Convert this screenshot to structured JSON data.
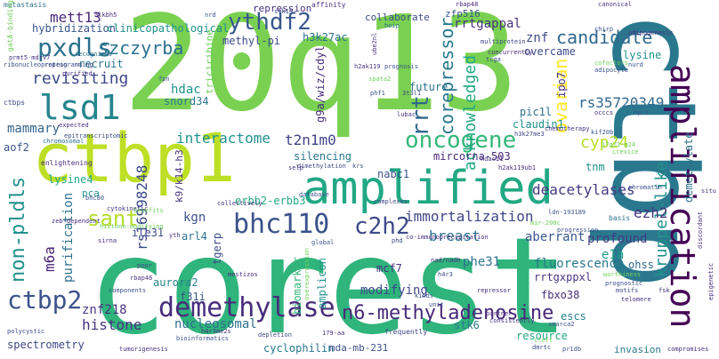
{
  "words": [
    {
      "text": "20q13",
      "color": "#7ad151"
    },
    {
      "text": "corest",
      "color": "#2fb47c"
    },
    {
      "text": "ctbp",
      "color": "#2a788e"
    },
    {
      "text": "ctbp1",
      "color": "#bddf26"
    },
    {
      "text": "amplified",
      "color": "#22a884"
    },
    {
      "text": "amplification",
      "color": "#440154"
    },
    {
      "text": "demethylase",
      "color": "#472d7b"
    },
    {
      "text": "bhc110",
      "color": "#3b528b"
    },
    {
      "text": "c2h2",
      "color": "#3e4a89"
    },
    {
      "text": "n6-methyladenosine",
      "color": "#482878"
    },
    {
      "text": "lsd1",
      "color": "#25858e"
    },
    {
      "text": "pxdls",
      "color": "#2c728e"
    },
    {
      "text": "oncogene",
      "color": "#35b779"
    },
    {
      "text": "ythdf2",
      "color": "#38588c"
    },
    {
      "text": "rrt",
      "color": "#31688e"
    },
    {
      "text": "ctbp2",
      "color": "#3b528b"
    },
    {
      "text": "non-pldls",
      "color": "#21918c"
    },
    {
      "text": "candidate",
      "color": "#31688e"
    },
    {
      "text": "corepressor",
      "color": "#2a788e"
    },
    {
      "text": "ovarian",
      "color": "#fde725"
    },
    {
      "text": "mett13",
      "color": "#482878"
    },
    {
      "text": "szczyrba",
      "color": "#2c728e"
    },
    {
      "text": "revisiting",
      "color": "#3e4a89"
    },
    {
      "text": "sant",
      "color": "#b5de2b"
    },
    {
      "text": "rs16998248",
      "color": "#3e4a89"
    },
    {
      "text": "acknowledged",
      "color": "#22a884"
    },
    {
      "text": "immortalization",
      "color": "#404688"
    },
    {
      "text": "breast",
      "color": "#2c728e"
    },
    {
      "text": "kruppel-like",
      "color": "#21918c"
    },
    {
      "text": "histone",
      "color": "#46337e"
    },
    {
      "text": "nucleosomal",
      "color": "#2e6f8e"
    },
    {
      "text": "znf218",
      "color": "#463480"
    },
    {
      "text": "deacetylases",
      "color": "#443983"
    },
    {
      "text": "fluorescence",
      "color": "#2a788e"
    },
    {
      "text": "rs35720349",
      "color": "#31688e"
    },
    {
      "text": "demethylate",
      "color": "#2c728e"
    },
    {
      "text": "ezh2",
      "color": "#46327e"
    },
    {
      "text": "cyp24",
      "color": "#b5de2b"
    },
    {
      "text": "interactome",
      "color": "#21918c"
    },
    {
      "text": "t2n1m0",
      "color": "#414487"
    },
    {
      "text": "spectrometry",
      "color": "#404688"
    },
    {
      "text": "stk6",
      "color": "#2a788e"
    },
    {
      "text": "modifying",
      "color": "#3e4a89"
    },
    {
      "text": "mammary",
      "color": "#33638d"
    },
    {
      "text": "hdac",
      "color": "#21918c"
    },
    {
      "text": "purification",
      "color": "#2c728e"
    },
    {
      "text": "m6a",
      "color": "#482677"
    },
    {
      "text": "cyclophilin",
      "color": "#2a788e"
    },
    {
      "text": "mda-mb-231",
      "color": "#3b528b"
    },
    {
      "text": "invasion",
      "color": "#2a788e"
    },
    {
      "text": "resource",
      "color": "#22a884"
    },
    {
      "text": "escs",
      "color": "#25848e"
    },
    {
      "text": "aberrant",
      "color": "#39568c"
    },
    {
      "text": "profound",
      "color": "#443a83"
    },
    {
      "text": "e1a",
      "color": "#1f9e89"
    },
    {
      "text": "ohss",
      "color": "#31688e"
    },
    {
      "text": "rrtgxppxl",
      "color": "#46327e"
    },
    {
      "text": "fbxo38",
      "color": "#472d7b"
    },
    {
      "text": "phe31",
      "color": "#2c728e"
    },
    {
      "text": "mircorna-503",
      "color": "#482878"
    },
    {
      "text": "nabc1",
      "color": "#3b528b"
    },
    {
      "text": "silencing",
      "color": "#2a788e"
    },
    {
      "text": "mcf7",
      "color": "#46327e"
    },
    {
      "text": "erbb2-erbb3",
      "color": "#22a884"
    },
    {
      "text": "amplicon",
      "color": "#21918c"
    },
    {
      "text": "biomarker",
      "color": "#35b779"
    },
    {
      "text": "tgerp",
      "color": "#3e4a89"
    },
    {
      "text": "aurora2",
      "color": "#26828e"
    },
    {
      "text": "f31i",
      "color": "#39568c"
    },
    {
      "text": "kgn",
      "color": "#3b528b"
    },
    {
      "text": "arl4",
      "color": "#2c728e"
    },
    {
      "text": "ile31",
      "color": "#3e4a89"
    },
    {
      "text": "k9/k14-h3",
      "color": "#46327e"
    },
    {
      "text": "lysine4",
      "color": "#22a884"
    },
    {
      "text": "pca",
      "color": "#21918c"
    },
    {
      "text": "aof2",
      "color": "#3b528b"
    },
    {
      "text": "recruit",
      "color": "#2a788e"
    },
    {
      "text": "hybridization",
      "color": "#39568c"
    },
    {
      "text": "clinicopathological",
      "color": "#21918c"
    },
    {
      "text": "methyl-pi",
      "color": "#3e4a89"
    },
    {
      "text": "h3k27ac",
      "color": "#2c728e"
    },
    {
      "text": "g9a/wiz/cdyl",
      "color": "#472d7b"
    },
    {
      "text": "future",
      "color": "#2c728e"
    },
    {
      "text": "snord34",
      "color": "#2a788e"
    },
    {
      "text": "triciribine",
      "color": "#6ece58"
    },
    {
      "text": "rrtgappal",
      "color": "#46327e"
    },
    {
      "text": "znf",
      "color": "#3e4a89"
    },
    {
      "text": "overcame",
      "color": "#3e4a89"
    },
    {
      "text": "lysine",
      "color": "#21918c"
    },
    {
      "text": "pic1l",
      "color": "#2c728e"
    },
    {
      "text": "claudin1",
      "color": "#21918c"
    },
    {
      "text": "ipo7",
      "color": "#46327e"
    },
    {
      "text": "tnm",
      "color": "#21918c"
    },
    {
      "text": "zfp516",
      "color": "#39568c"
    },
    {
      "text": "repression",
      "color": "#46327e"
    },
    {
      "text": "collaborate",
      "color": "#3e4a89"
    },
    {
      "text": "metastasis",
      "color": "#2c728e"
    },
    {
      "text": "gatA-binding",
      "color": "#6ece58"
    },
    {
      "text": "prmt5-mdrv7",
      "color": "#46327e"
    },
    {
      "text": "ribonucleoprotein",
      "color": "#3b528b"
    },
    {
      "text": "purified",
      "color": "#46327e"
    },
    {
      "text": "reprogramming",
      "color": "#3e4a89"
    },
    {
      "text": "recognizes",
      "color": "#2c728e"
    },
    {
      "text": "affinity",
      "color": "#46327e"
    },
    {
      "text": "alkbh5",
      "color": "#472d7b"
    },
    {
      "text": "nrd",
      "color": "#3b528b"
    },
    {
      "text": "stk15",
      "color": "#3e4a89"
    },
    {
      "text": "rbap48",
      "color": "#482878"
    },
    {
      "text": "canonical",
      "color": "#46327e"
    },
    {
      "text": "hoip",
      "color": "#2c728e"
    },
    {
      "text": "multiprotein",
      "color": "#3e4a89"
    },
    {
      "text": "chirp",
      "color": "#3b528b"
    },
    {
      "text": "adipogenesis",
      "color": "#46327e"
    },
    {
      "text": "concurrently",
      "color": "#472d7b"
    },
    {
      "text": "tcga",
      "color": "#3e4a89"
    },
    {
      "text": "cofactors",
      "color": "#6ece58"
    },
    {
      "text": "adipocyte",
      "color": "#3b528b"
    },
    {
      "text": "nurd",
      "color": "#39568c"
    },
    {
      "text": "h2ak119",
      "color": "#46327e"
    },
    {
      "text": "prognosis",
      "color": "#3b528b"
    },
    {
      "text": "spata2",
      "color": "#6ece58"
    },
    {
      "text": "phf1",
      "color": "#3b528b"
    },
    {
      "text": "3t3l1",
      "color": "#3e4a89"
    },
    {
      "text": "lubac",
      "color": "#46327e"
    },
    {
      "text": "ube2nl",
      "color": "#46327e"
    },
    {
      "text": "occcs",
      "color": "#472d7b"
    },
    {
      "text": "hpc2",
      "color": "#3b528b"
    },
    {
      "text": "kif20b",
      "color": "#39568c"
    },
    {
      "text": "chemotherapy",
      "color": "#46327e"
    },
    {
      "text": "h3k27me3",
      "color": "#3e4a89"
    },
    {
      "text": "crevice",
      "color": "#6ece58"
    },
    {
      "text": "17q22-q24",
      "color": "#6ece58"
    },
    {
      "text": "hdac11",
      "color": "#46327e"
    },
    {
      "text": "h2ak119ub1",
      "color": "#472d7b"
    },
    {
      "text": "ldn-193189",
      "color": "#3b528b"
    },
    {
      "text": "basis",
      "color": "#2c728e"
    },
    {
      "text": "chromatin",
      "color": "#3b528b"
    },
    {
      "text": "situ",
      "color": "#46327e"
    },
    {
      "text": "ctbps",
      "color": "#3e4a89"
    },
    {
      "text": "fpn",
      "color": "#3b528b"
    },
    {
      "text": "expected",
      "color": "#46327e"
    },
    {
      "text": "epitranscriptomic",
      "color": "#3e4a89"
    },
    {
      "text": "chromosomal",
      "color": "#2c728e"
    },
    {
      "text": "enlightening",
      "color": "#472d7b"
    },
    {
      "text": "dimethylation",
      "color": "#3e4a89"
    },
    {
      "text": "selp",
      "color": "#46327e"
    },
    {
      "text": "krs",
      "color": "#3b528b"
    },
    {
      "text": "bhc80",
      "color": "#3b528b"
    },
    {
      "text": "cytokinetic",
      "color": "#46327e"
    },
    {
      "text": "benefits",
      "color": "#6ece58"
    },
    {
      "text": "collectively",
      "color": "#46327e"
    },
    {
      "text": "database",
      "color": "#3b528b"
    },
    {
      "text": "complexes",
      "color": "#3e4a89"
    },
    {
      "text": "histone-modifying",
      "color": "#6ece58"
    },
    {
      "text": "zeb-dependent",
      "color": "#46327e"
    },
    {
      "text": "sirna",
      "color": "#472d7b"
    },
    {
      "text": "yth",
      "color": "#46327e"
    },
    {
      "text": "global",
      "color": "#3b528b"
    },
    {
      "text": "phd",
      "color": "#3e4a89"
    },
    {
      "text": "co-immunoprecipitation",
      "color": "#46327e"
    },
    {
      "text": "mir-200c",
      "color": "#6ece58"
    },
    {
      "text": "progression",
      "color": "#3b528b"
    },
    {
      "text": "rbap46",
      "color": "#46327e"
    },
    {
      "text": "poor",
      "color": "#3e4a89"
    },
    {
      "text": "mestizos",
      "color": "#472d7b"
    },
    {
      "text": "components",
      "color": "#3b528b"
    },
    {
      "text": "nad/nadh",
      "color": "#46327e"
    },
    {
      "text": "h4r3",
      "color": "#3e4a89"
    },
    {
      "text": "overexpression",
      "color": "#6ece58"
    },
    {
      "text": "kinds",
      "color": "#3b528b"
    },
    {
      "text": "repressor",
      "color": "#46327e"
    },
    {
      "text": "worthiness",
      "color": "#6ece58"
    },
    {
      "text": "prognostic",
      "color": "#3b528b"
    },
    {
      "text": "motifs",
      "color": "#3e4a89"
    },
    {
      "text": "telomere",
      "color": "#46327e"
    },
    {
      "text": "fsk",
      "color": "#472d7b"
    },
    {
      "text": "polycystic",
      "color": "#3e4a89"
    },
    {
      "text": "h4r3me2s",
      "color": "#46327e"
    },
    {
      "text": "bioinformatics",
      "color": "#3b528b"
    },
    {
      "text": "tumorigenesis",
      "color": "#46327e"
    },
    {
      "text": "depletion",
      "color": "#3e4a89"
    },
    {
      "text": "unit",
      "color": "#3b528b"
    },
    {
      "text": "partner",
      "color": "#472d7b"
    },
    {
      "text": "consistently",
      "color": "#46327e"
    },
    {
      "text": "smarca2",
      "color": "#3b528b"
    },
    {
      "text": "frequently",
      "color": "#3e4a89"
    },
    {
      "text": "179-aa",
      "color": "#46327e"
    },
    {
      "text": "cleft",
      "color": "#6ece58"
    },
    {
      "text": "compromises",
      "color": "#46327e"
    },
    {
      "text": "pr1db",
      "color": "#3b528b"
    },
    {
      "text": "epigenetic",
      "color": "#472d7b"
    },
    {
      "text": "dmrtc",
      "color": "#3e4a89"
    },
    {
      "text": "discordant",
      "color": "#46327e"
    }
  ]
}
